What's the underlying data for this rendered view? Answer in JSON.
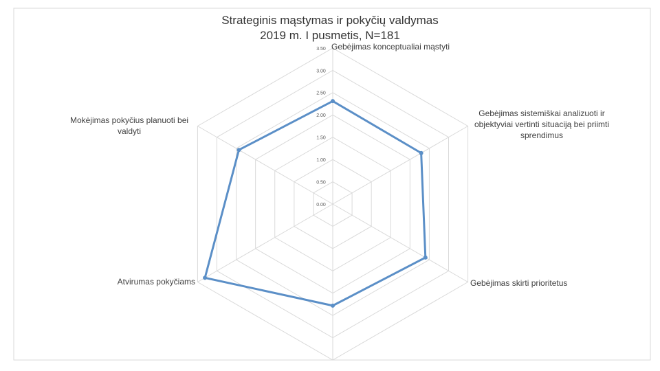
{
  "chart_data": {
    "type": "radar",
    "title": "Strateginis mąstymas ir pokyčių valdymas",
    "subtitle": "2019 m. I pusmetis, N=181",
    "categories": [
      "Gebėjimas konceptualiai mąstyti",
      "Gebėjimas sistemiškai analizuoti ir objektyviai vertinti situaciją bei priimti sprendimus",
      "Gebėjimas skirti prioritetus",
      null,
      "Atvirumas pokyčiams",
      "Mokėjimas pokyčius planuoti bei valdyti"
    ],
    "values": [
      2.31,
      2.29,
      2.4,
      2.28,
      3.31,
      2.43
    ],
    "color": "#5b8fc7",
    "ylim": [
      0,
      3.5
    ],
    "yticks": [
      {
        "value": 0,
        "label": "0.00"
      },
      {
        "value": 0.5,
        "label": "0.50"
      },
      {
        "value": 1,
        "label": "1.00"
      },
      {
        "value": 1.5,
        "label": "1.50"
      },
      {
        "value": 2,
        "label": "2.00"
      },
      {
        "value": 2.5,
        "label": "2.50"
      },
      {
        "value": 3,
        "label": "3.00"
      },
      {
        "value": 3.5,
        "label": "3.50"
      }
    ],
    "grid": true
  }
}
